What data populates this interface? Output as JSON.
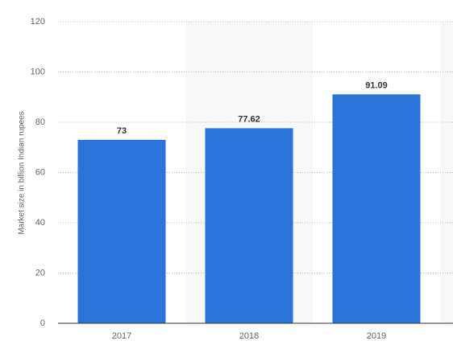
{
  "chart_data": {
    "type": "bar",
    "y_label": "Market size in billion Indian rupees",
    "categories": [
      "2017",
      "2018",
      "2019"
    ],
    "values": [
      73,
      77.62,
      91.09
    ],
    "color": "#2874d9",
    "ylim": [
      0,
      120
    ],
    "yticks": [
      0,
      20,
      40,
      60,
      80,
      100,
      120
    ],
    "grid": true
  }
}
